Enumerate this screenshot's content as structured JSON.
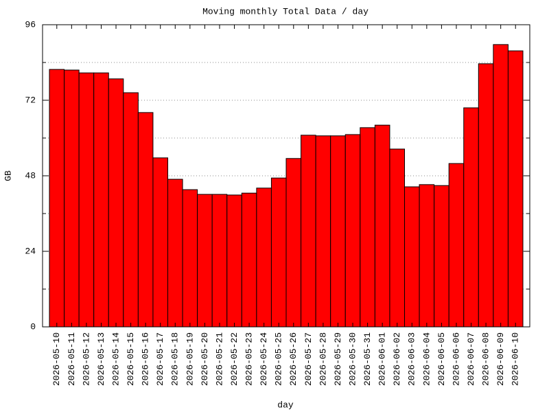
{
  "chart_data": {
    "type": "bar",
    "title": "Moving monthly Total Data / day",
    "xlabel": "day",
    "ylabel": "GB",
    "categories": [
      "2026-05-10",
      "2026-05-11",
      "2026-05-12",
      "2026-05-13",
      "2026-05-14",
      "2026-05-15",
      "2026-05-16",
      "2026-05-17",
      "2026-05-18",
      "2026-05-19",
      "2026-05-20",
      "2026-05-21",
      "2026-05-22",
      "2026-05-23",
      "2026-05-24",
      "2026-05-25",
      "2026-05-26",
      "2026-05-27",
      "2026-05-28",
      "2026-05-29",
      "2026-05-30",
      "2026-05-31",
      "2026-06-01",
      "2026-06-02",
      "2026-06-03",
      "2026-06-04",
      "2026-06-05",
      "2026-06-06",
      "2026-06-07",
      "2026-06-08",
      "2026-06-09",
      "2026-06-10"
    ],
    "values": [
      81.8,
      81.6,
      80.7,
      80.7,
      78.8,
      74.4,
      68.1,
      53.7,
      46.9,
      43.6,
      42.1,
      42.1,
      41.9,
      42.5,
      44.1,
      47.3,
      53.5,
      60.9,
      60.7,
      60.7,
      61.1,
      63.3,
      64.1,
      56.5,
      44.5,
      45.2,
      44.9,
      51.9,
      69.6,
      83.6,
      89.7,
      87.7
    ],
    "color": "#ff0000",
    "ylim": [
      0,
      96
    ],
    "yticks": [
      0,
      24,
      48,
      72,
      96
    ],
    "yminorticks": [
      12,
      36,
      60,
      84
    ],
    "grid": true
  }
}
